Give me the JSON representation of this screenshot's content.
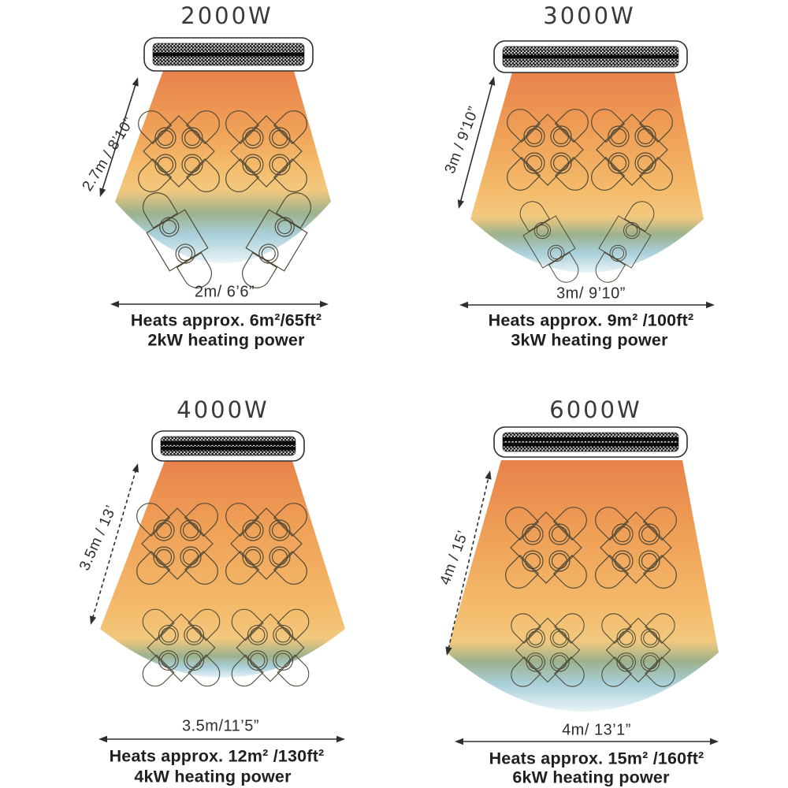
{
  "infographic": {
    "description_colors": {
      "cone_top_orange": "#e8824a",
      "cone_mid_orange": "#efa057",
      "cone_amber": "#f2c87e",
      "cone_green": "#9cb28d",
      "cone_blue": "#a9cfda",
      "cone_fade": "#e8f4f7",
      "outline": "#4e4836",
      "text": "#2e2e2e"
    },
    "heaters": [
      {
        "id": "2000w",
        "title": "2000W",
        "height_label": "2.7m / 8’10”",
        "width_label": "2m/ 6’6”",
        "heats_label": "Heats approx. 6m²/65ft²",
        "power_label": "2kW heating power"
      },
      {
        "id": "3000w",
        "title": "3000W",
        "height_label": "3m / 9’10”",
        "width_label": "3m/ 9’10”",
        "heats_label": "Heats approx. 9m² /100ft²",
        "power_label": "3kW heating power"
      },
      {
        "id": "4000w",
        "title": "4000W",
        "height_label": "3.5m / 13’",
        "width_label": "3.5m/11’5”",
        "heats_label": "Heats approx. 12m² /130ft²",
        "power_label": "4kW  heating power"
      },
      {
        "id": "6000w",
        "title": "6000W",
        "height_label": "4m / 15’",
        "width_label": "4m/ 13’1”",
        "heats_label": "Heats approx. 15m²  /160ft²",
        "power_label": "6kW heating power"
      }
    ]
  }
}
